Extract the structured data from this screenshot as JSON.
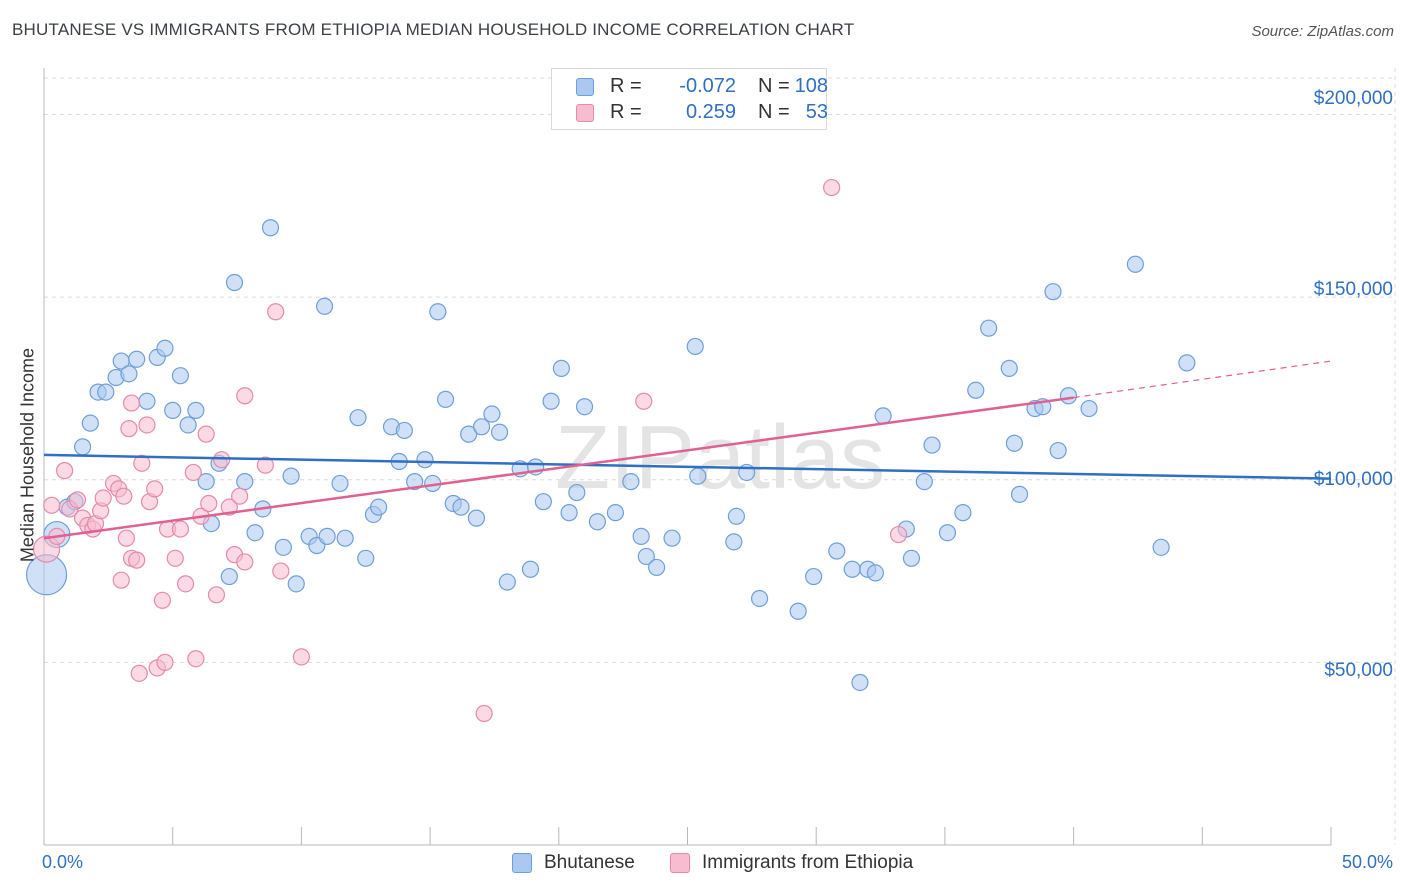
{
  "title": "BHUTANESE VS IMMIGRANTS FROM ETHIOPIA MEDIAN HOUSEHOLD INCOME CORRELATION CHART",
  "source": "Source: ZipAtlas.com",
  "watermark": "ZIPatlas",
  "legend_stats": [
    {
      "r_label": "R =",
      "r_value": "-0.072",
      "n_label": "N =",
      "n_value": "108"
    },
    {
      "r_label": "R =",
      "r_value": "0.259",
      "n_label": "N =",
      "n_value": "53"
    }
  ],
  "chart_data": {
    "type": "scatter",
    "ylabel": "Median Household Income",
    "xlabel": "",
    "xlim": [
      0,
      50
    ],
    "ylim": [
      0,
      210000
    ],
    "x_tick_labels": [
      "0.0%",
      "50.0%"
    ],
    "y_ticks": [
      50000,
      100000,
      150000,
      200000
    ],
    "y_tick_labels": [
      "$50,000",
      "$100,000",
      "$150,000",
      "$200,000"
    ],
    "grid": true,
    "legend_position": "bottom-center",
    "colors": {
      "bhutanese_fill": "#aac8f0",
      "bhutanese_stroke": "#6f9fd8",
      "bhutanese_line": "#2f6fc4",
      "ethiopia_fill": "#f7bcd0",
      "ethiopia_stroke": "#e58aaa",
      "ethiopia_line": "#e06090",
      "grid": "#dcdcdc",
      "axis_text": "#2f6fc4"
    },
    "series": [
      {
        "name": "Bhutanese",
        "trend": {
          "x": [
            0,
            50
          ],
          "y": [
            106800,
            100300
          ]
        },
        "points": [
          [
            0.1,
            74000,
            3
          ],
          [
            0.5,
            85000,
            2
          ],
          [
            0.9,
            92500,
            1
          ],
          [
            1.2,
            94000,
            1
          ],
          [
            1.5,
            109000,
            1
          ],
          [
            1.8,
            115500,
            1
          ],
          [
            2.1,
            124000,
            1
          ],
          [
            2.4,
            124000,
            1
          ],
          [
            2.8,
            128000,
            1
          ],
          [
            3.0,
            132500,
            1
          ],
          [
            3.3,
            129000,
            1
          ],
          [
            3.6,
            133000,
            1
          ],
          [
            4.0,
            121500,
            1
          ],
          [
            4.4,
            133500,
            1
          ],
          [
            4.7,
            136000,
            1
          ],
          [
            5.0,
            119000,
            1
          ],
          [
            5.3,
            128500,
            1
          ],
          [
            5.6,
            115000,
            1
          ],
          [
            5.9,
            119000,
            1
          ],
          [
            6.3,
            99500,
            1
          ],
          [
            6.5,
            88000,
            1
          ],
          [
            6.8,
            104500,
            1
          ],
          [
            7.2,
            73500,
            1
          ],
          [
            7.4,
            154000,
            1
          ],
          [
            7.8,
            99500,
            1
          ],
          [
            8.2,
            85500,
            1
          ],
          [
            8.5,
            92000,
            1
          ],
          [
            8.8,
            169000,
            1
          ],
          [
            9.3,
            81500,
            1
          ],
          [
            9.6,
            101000,
            1
          ],
          [
            9.8,
            71500,
            1
          ],
          [
            10.3,
            84500,
            1
          ],
          [
            10.6,
            82000,
            1
          ],
          [
            10.9,
            147500,
            1
          ],
          [
            11.0,
            84500,
            1
          ],
          [
            11.5,
            99000,
            1
          ],
          [
            11.7,
            84000,
            1
          ],
          [
            12.2,
            117000,
            1
          ],
          [
            12.5,
            78500,
            1
          ],
          [
            12.8,
            90500,
            1
          ],
          [
            13.0,
            92500,
            1
          ],
          [
            13.5,
            114500,
            1
          ],
          [
            13.8,
            105000,
            1
          ],
          [
            14.0,
            113500,
            1
          ],
          [
            14.4,
            99500,
            1
          ],
          [
            14.8,
            105500,
            1
          ],
          [
            15.1,
            99000,
            1
          ],
          [
            15.3,
            146000,
            1
          ],
          [
            15.6,
            122000,
            1
          ],
          [
            15.9,
            93500,
            1
          ],
          [
            16.2,
            92500,
            1
          ],
          [
            16.5,
            112500,
            1
          ],
          [
            16.8,
            89500,
            1
          ],
          [
            17.0,
            114500,
            1
          ],
          [
            17.4,
            118000,
            1
          ],
          [
            17.7,
            113000,
            1
          ],
          [
            18.0,
            72000,
            1
          ],
          [
            18.5,
            103000,
            1
          ],
          [
            18.9,
            75500,
            1
          ],
          [
            19.1,
            103500,
            1
          ],
          [
            19.4,
            94000,
            1
          ],
          [
            19.7,
            121500,
            1
          ],
          [
            20.1,
            130500,
            1
          ],
          [
            20.4,
            91000,
            1
          ],
          [
            20.7,
            96500,
            1
          ],
          [
            21.0,
            120000,
            1
          ],
          [
            21.5,
            88500,
            1
          ],
          [
            22.2,
            91000,
            1
          ],
          [
            22.8,
            99500,
            1
          ],
          [
            23.2,
            84500,
            1
          ],
          [
            23.4,
            79000,
            1
          ],
          [
            23.8,
            76000,
            1
          ],
          [
            24.4,
            84000,
            1
          ],
          [
            25.3,
            136500,
            1
          ],
          [
            25.4,
            101000,
            1
          ],
          [
            26.8,
            83000,
            1
          ],
          [
            26.9,
            90000,
            1
          ],
          [
            27.3,
            102000,
            1
          ],
          [
            27.8,
            67500,
            1
          ],
          [
            29.3,
            64000,
            1
          ],
          [
            29.9,
            73500,
            1
          ],
          [
            30.8,
            80500,
            1
          ],
          [
            31.4,
            75500,
            1
          ],
          [
            31.7,
            44500,
            1
          ],
          [
            32.0,
            75500,
            1
          ],
          [
            32.3,
            74500,
            1
          ],
          [
            32.6,
            117500,
            1
          ],
          [
            33.5,
            86500,
            1
          ],
          [
            33.7,
            78500,
            1
          ],
          [
            34.2,
            99500,
            1
          ],
          [
            34.5,
            109500,
            1
          ],
          [
            35.1,
            85500,
            1
          ],
          [
            35.7,
            91000,
            1
          ],
          [
            36.2,
            124500,
            1
          ],
          [
            36.7,
            141500,
            1
          ],
          [
            37.5,
            130500,
            1
          ],
          [
            37.7,
            110000,
            1
          ],
          [
            37.9,
            96000,
            1
          ],
          [
            38.5,
            119500,
            1
          ],
          [
            38.8,
            120000,
            1
          ],
          [
            39.2,
            151500,
            1
          ],
          [
            39.4,
            108000,
            1
          ],
          [
            39.8,
            123000,
            1
          ],
          [
            40.6,
            119500,
            1
          ],
          [
            42.4,
            159000,
            1
          ],
          [
            43.4,
            81500,
            1
          ],
          [
            44.4,
            132000,
            1
          ]
        ]
      },
      {
        "name": "Immigrants from Ethiopia",
        "trend": {
          "x": [
            0,
            40
          ],
          "y": [
            84000,
            122500
          ]
        },
        "trend_extension": {
          "x": [
            40,
            50
          ],
          "y": [
            122500,
            132500
          ]
        },
        "points": [
          [
            0.1,
            81000,
            2
          ],
          [
            0.3,
            93000,
            1
          ],
          [
            0.5,
            84500,
            1
          ],
          [
            0.8,
            102500,
            1
          ],
          [
            1.0,
            92000,
            1
          ],
          [
            1.3,
            94500,
            1
          ],
          [
            1.5,
            89500,
            1
          ],
          [
            1.7,
            87500,
            1
          ],
          [
            1.9,
            86500,
            1
          ],
          [
            2.0,
            88000,
            1
          ],
          [
            2.2,
            91500,
            1
          ],
          [
            2.3,
            95000,
            1
          ],
          [
            2.7,
            99000,
            1
          ],
          [
            2.9,
            97500,
            1
          ],
          [
            3.0,
            72500,
            1
          ],
          [
            3.1,
            95500,
            1
          ],
          [
            3.2,
            84000,
            1
          ],
          [
            3.4,
            78500,
            1
          ],
          [
            3.6,
            78000,
            1
          ],
          [
            3.3,
            114000,
            1
          ],
          [
            3.4,
            121000,
            1
          ],
          [
            3.8,
            104500,
            1
          ],
          [
            4.0,
            115000,
            1
          ],
          [
            4.1,
            94000,
            1
          ],
          [
            4.3,
            97500,
            1
          ],
          [
            4.6,
            67000,
            1
          ],
          [
            4.8,
            86500,
            1
          ],
          [
            5.1,
            78500,
            1
          ],
          [
            5.3,
            86500,
            1
          ],
          [
            5.5,
            71500,
            1
          ],
          [
            5.8,
            102000,
            1
          ],
          [
            6.1,
            90000,
            1
          ],
          [
            6.3,
            112500,
            1
          ],
          [
            6.4,
            93500,
            1
          ],
          [
            6.7,
            68500,
            1
          ],
          [
            6.9,
            105500,
            1
          ],
          [
            7.2,
            92500,
            1
          ],
          [
            7.4,
            79500,
            1
          ],
          [
            7.6,
            95500,
            1
          ],
          [
            7.8,
            77500,
            1
          ],
          [
            7.8,
            123000,
            1
          ],
          [
            8.6,
            104000,
            1
          ],
          [
            9.0,
            146000,
            1
          ],
          [
            9.2,
            75000,
            1
          ],
          [
            10.0,
            51500,
            1
          ],
          [
            3.7,
            47000,
            1
          ],
          [
            4.4,
            48500,
            1
          ],
          [
            4.7,
            50000,
            1
          ],
          [
            5.9,
            51000,
            1
          ],
          [
            17.1,
            36000,
            1
          ],
          [
            23.3,
            121500,
            1
          ],
          [
            30.6,
            180000,
            1
          ],
          [
            33.2,
            85000,
            1
          ]
        ]
      }
    ]
  }
}
